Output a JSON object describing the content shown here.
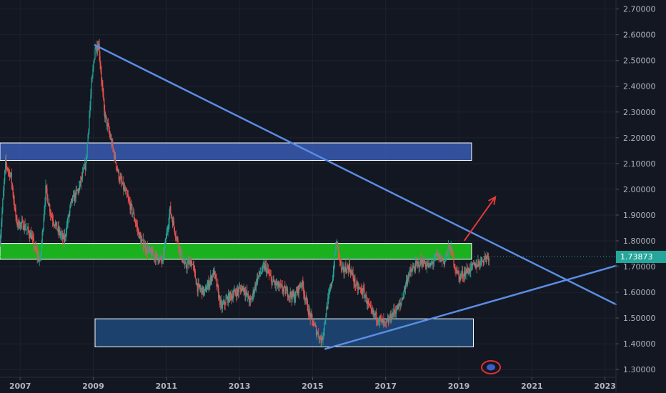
{
  "chart_data": {
    "type": "candlestick",
    "xlim": [
      2006.45,
      2023.3
    ],
    "ylim": [
      1.27,
      2.735
    ],
    "y_ticks": [
      "2.70000",
      "2.60000",
      "2.50000",
      "2.40000",
      "2.30000",
      "2.20000",
      "2.10000",
      "2.00000",
      "1.90000",
      "1.80000",
      "1.70000",
      "1.60000",
      "1.50000",
      "1.40000",
      "1.30000"
    ],
    "y_tick_values": [
      2.7,
      2.6,
      2.5,
      2.4,
      2.3,
      2.2,
      2.1,
      2.0,
      1.9,
      1.8,
      1.7,
      1.6,
      1.5,
      1.4,
      1.3
    ],
    "x_ticks": [
      "2007",
      "2009",
      "2011",
      "2013",
      "2015",
      "2017",
      "2019",
      "2021",
      "2023"
    ],
    "x_tick_values": [
      2007,
      2009,
      2011,
      2013,
      2015,
      2017,
      2019,
      2021,
      2023
    ],
    "last_price": "1.73873",
    "last_price_value": 1.73873,
    "price_path": [
      [
        2006.45,
        1.8
      ],
      [
        2006.6,
        2.1
      ],
      [
        2006.75,
        2.05
      ],
      [
        2006.9,
        1.87
      ],
      [
        2007.1,
        1.86
      ],
      [
        2007.3,
        1.82
      ],
      [
        2007.45,
        1.75
      ],
      [
        2007.55,
        1.72
      ],
      [
        2007.7,
        2.0
      ],
      [
        2007.85,
        1.9
      ],
      [
        2008.0,
        1.85
      ],
      [
        2008.2,
        1.8
      ],
      [
        2008.4,
        1.95
      ],
      [
        2008.6,
        2.0
      ],
      [
        2008.8,
        2.1
      ],
      [
        2008.95,
        2.4
      ],
      [
        2009.05,
        2.55
      ],
      [
        2009.15,
        2.56
      ],
      [
        2009.3,
        2.3
      ],
      [
        2009.5,
        2.18
      ],
      [
        2009.7,
        2.05
      ],
      [
        2009.9,
        1.98
      ],
      [
        2010.1,
        1.9
      ],
      [
        2010.3,
        1.8
      ],
      [
        2010.5,
        1.76
      ],
      [
        2010.7,
        1.74
      ],
      [
        2010.9,
        1.72
      ],
      [
        2011.1,
        1.92
      ],
      [
        2011.3,
        1.8
      ],
      [
        2011.5,
        1.7
      ],
      [
        2011.7,
        1.72
      ],
      [
        2011.85,
        1.62
      ],
      [
        2012.05,
        1.6
      ],
      [
        2012.3,
        1.68
      ],
      [
        2012.5,
        1.54
      ],
      [
        2012.7,
        1.58
      ],
      [
        2012.9,
        1.6
      ],
      [
        2013.1,
        1.62
      ],
      [
        2013.3,
        1.56
      ],
      [
        2013.5,
        1.66
      ],
      [
        2013.7,
        1.7
      ],
      [
        2013.9,
        1.64
      ],
      [
        2014.1,
        1.62
      ],
      [
        2014.3,
        1.6
      ],
      [
        2014.5,
        1.58
      ],
      [
        2014.7,
        1.64
      ],
      [
        2014.9,
        1.52
      ],
      [
        2015.1,
        1.45
      ],
      [
        2015.25,
        1.41
      ],
      [
        2015.4,
        1.55
      ],
      [
        2015.55,
        1.66
      ],
      [
        2015.65,
        1.8
      ],
      [
        2015.8,
        1.68
      ],
      [
        2016.0,
        1.7
      ],
      [
        2016.2,
        1.62
      ],
      [
        2016.4,
        1.6
      ],
      [
        2016.6,
        1.52
      ],
      [
        2016.8,
        1.5
      ],
      [
        2017.0,
        1.47
      ],
      [
        2017.2,
        1.52
      ],
      [
        2017.4,
        1.55
      ],
      [
        2017.6,
        1.66
      ],
      [
        2017.8,
        1.7
      ],
      [
        2018.0,
        1.72
      ],
      [
        2018.2,
        1.7
      ],
      [
        2018.4,
        1.74
      ],
      [
        2018.6,
        1.72
      ],
      [
        2018.75,
        1.78
      ],
      [
        2018.9,
        1.7
      ],
      [
        2019.0,
        1.66
      ],
      [
        2019.2,
        1.68
      ],
      [
        2019.4,
        1.7
      ],
      [
        2019.6,
        1.72
      ],
      [
        2019.75,
        1.74
      ],
      [
        2019.85,
        1.73873
      ]
    ],
    "zones": [
      {
        "name": "resistance-zone-blue",
        "x0": 2006.45,
        "x1": 2019.35,
        "y0": 2.112,
        "y1": 2.18,
        "fill": "#3d64c4",
        "opacity": 0.75,
        "stroke": "#ffffff"
      },
      {
        "name": "support-zone-green",
        "x0": 2006.45,
        "x1": 2019.35,
        "y0": 1.728,
        "y1": 1.79,
        "fill": "#1bb81f",
        "opacity": 0.95,
        "stroke": "#ffffff"
      },
      {
        "name": "support-zone-bottom",
        "x0": 2009.05,
        "x1": 2019.4,
        "y0": 1.388,
        "y1": 1.497,
        "fill": "#1e4c80",
        "opacity": 0.8,
        "stroke": "#ffffff"
      }
    ],
    "trendlines": [
      {
        "name": "descending-trendline",
        "x0": 2009.05,
        "y0": 2.56,
        "x1": 2023.3,
        "y1": 1.553,
        "color": "#5b8de3"
      },
      {
        "name": "ascending-trendline",
        "x0": 2015.35,
        "y0": 1.38,
        "x1": 2023.3,
        "y1": 1.703,
        "color": "#5b8de3"
      }
    ],
    "arrow": {
      "x0": 2019.15,
      "y0": 1.8,
      "x1": 2020.0,
      "y1": 1.97,
      "color": "#e03b3b"
    },
    "colors": {
      "up": "#26a69a",
      "down": "#ef5350",
      "background": "#131722",
      "grid": "#1e222d",
      "price_label": "#26a69a"
    }
  }
}
